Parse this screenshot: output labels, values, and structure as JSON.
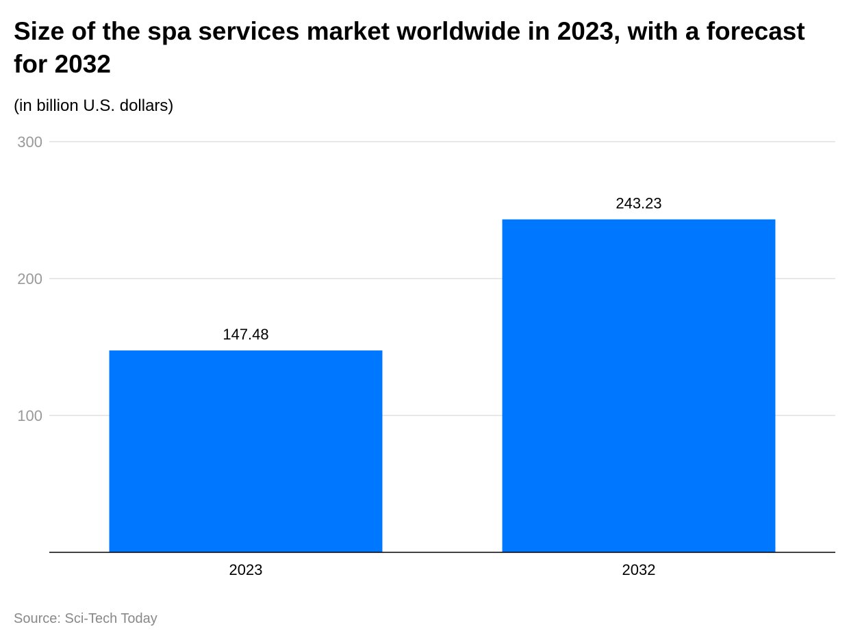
{
  "chart_data": {
    "type": "bar",
    "title": "Size of the spa services market worldwide in 2023, with a forecast for 2032",
    "subtitle": "(in billion U.S. dollars)",
    "categories": [
      "2023",
      "2032"
    ],
    "values": [
      147.48,
      243.23
    ],
    "value_labels": [
      "147.48",
      "243.23"
    ],
    "ylim": [
      0,
      300
    ],
    "yticks": [
      100,
      200,
      300
    ],
    "ytick_labels": [
      "100",
      "200",
      "300"
    ],
    "xlabel": "",
    "ylabel": "",
    "grid": true,
    "bar_color": "#0077ff",
    "source_label": "Source:",
    "source": "Sci-Tech Today"
  }
}
